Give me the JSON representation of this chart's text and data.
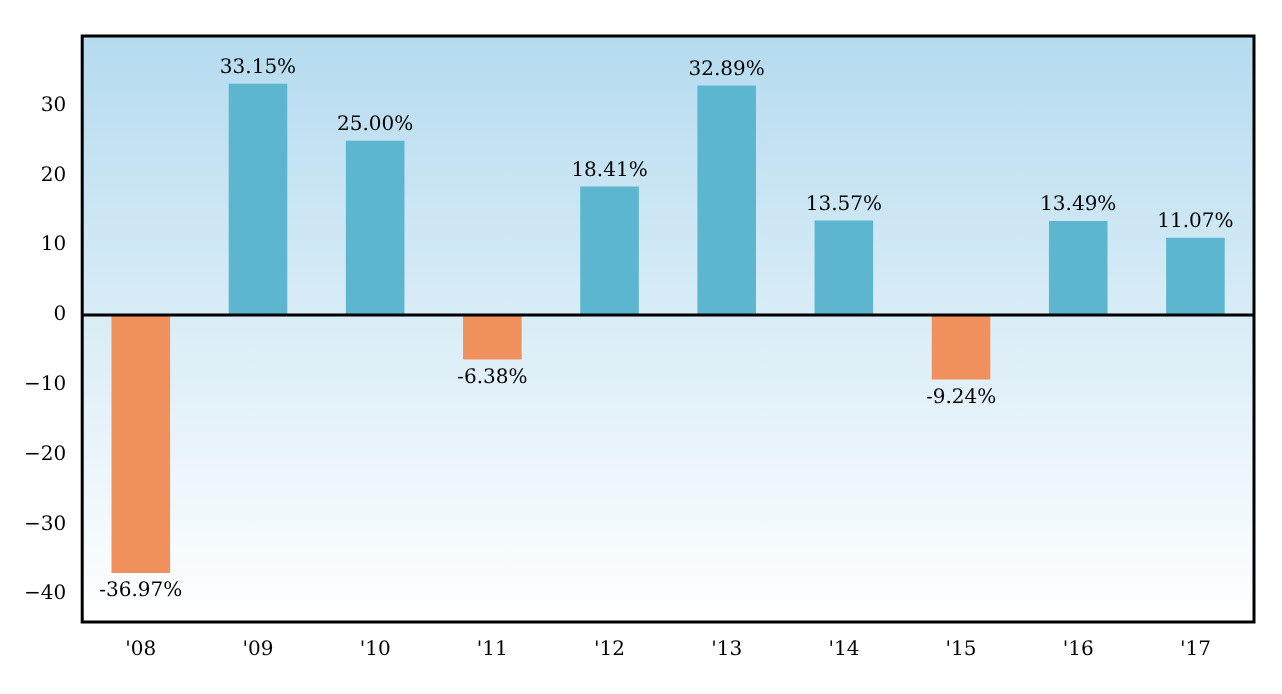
{
  "chart_data": {
    "type": "bar",
    "categories": [
      "'08",
      "'09",
      "'10",
      "'11",
      "'12",
      "'13",
      "'14",
      "'15",
      "'16",
      "'17"
    ],
    "values": [
      -36.97,
      33.15,
      25.0,
      -6.38,
      18.41,
      32.89,
      13.57,
      -9.24,
      13.49,
      11.07
    ],
    "colors": [
      "#f0905c",
      "#5cb6cf",
      "#5cb6cf",
      "#f0905c",
      "#5cb6cf",
      "#5cb6cf",
      "#5cb6cf",
      "#f0905c",
      "#5cb6cf",
      "#5cb6cf"
    ],
    "value_labels": [
      "-36.97%",
      "33.15%",
      "25.00%",
      "-6.38%",
      "18.41%",
      "32.89%",
      "13.57%",
      "-9.24%",
      "13.49%",
      "11.07%"
    ],
    "ylim": [
      -44,
      40
    ],
    "yticks": [
      -40,
      -30,
      -20,
      -10,
      0,
      10,
      20,
      30
    ],
    "ref_lines": [
      {
        "axis": "y",
        "value": 0,
        "color": "#000000"
      }
    ],
    "grid": false,
    "legend": false
  }
}
